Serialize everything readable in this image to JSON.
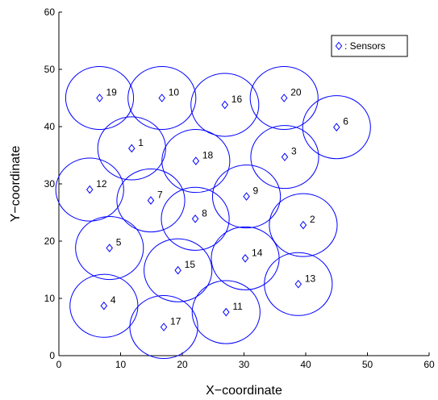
{
  "chart_data": {
    "type": "scatter",
    "title": "",
    "xlabel": "X−coordinate",
    "ylabel": "Y−coordinate",
    "xlim": [
      0,
      60
    ],
    "ylim": [
      0,
      60
    ],
    "xticks": [
      "0",
      "10",
      "20",
      "30",
      "40",
      "50",
      "60"
    ],
    "yticks": [
      "0",
      "10",
      "20",
      "30",
      "40",
      "50",
      "60"
    ],
    "grid": false,
    "legend": {
      "position": "top-right",
      "entries": [
        ": Sensors"
      ]
    },
    "marker": "diamond",
    "color": "#0000ff",
    "coverage_radius": 5.5,
    "series": [
      {
        "points": [
          {
            "id": "1",
            "x": 11.8,
            "y": 36.2
          },
          {
            "id": "2",
            "x": 39.6,
            "y": 22.8
          },
          {
            "id": "3",
            "x": 36.6,
            "y": 34.7
          },
          {
            "id": "4",
            "x": 7.3,
            "y": 8.7
          },
          {
            "id": "5",
            "x": 8.2,
            "y": 18.8
          },
          {
            "id": "6",
            "x": 45.0,
            "y": 39.9
          },
          {
            "id": "7",
            "x": 14.9,
            "y": 27.1
          },
          {
            "id": "8",
            "x": 22.1,
            "y": 23.9
          },
          {
            "id": "9",
            "x": 30.4,
            "y": 27.8
          },
          {
            "id": "10",
            "x": 16.7,
            "y": 45.0
          },
          {
            "id": "11",
            "x": 27.1,
            "y": 7.6
          },
          {
            "id": "12",
            "x": 5.0,
            "y": 29.0
          },
          {
            "id": "13",
            "x": 38.8,
            "y": 12.5
          },
          {
            "id": "14",
            "x": 30.2,
            "y": 17.0
          },
          {
            "id": "15",
            "x": 19.3,
            "y": 14.9
          },
          {
            "id": "16",
            "x": 26.9,
            "y": 43.8
          },
          {
            "id": "17",
            "x": 17.0,
            "y": 5.0
          },
          {
            "id": "18",
            "x": 22.2,
            "y": 34.0
          },
          {
            "id": "19",
            "x": 6.6,
            "y": 45.0
          },
          {
            "id": "20",
            "x": 36.5,
            "y": 45.0
          }
        ]
      }
    ]
  }
}
